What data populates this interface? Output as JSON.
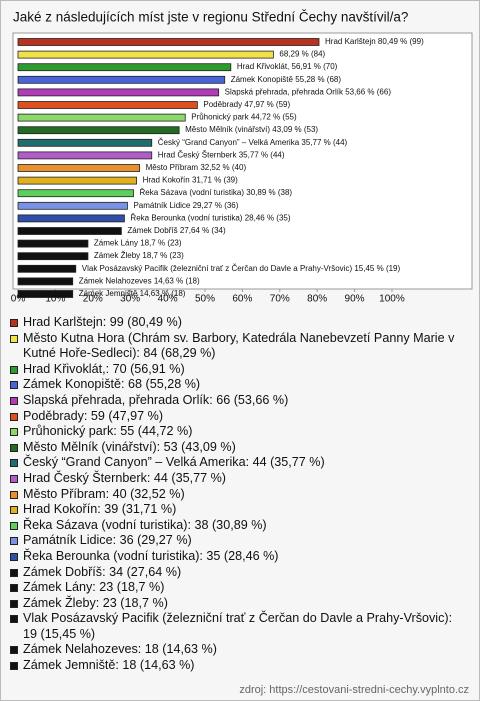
{
  "chart_data": {
    "type": "bar",
    "orientation": "horizontal",
    "title": "Jaké z následujících míst jste v regionu Střední Čechy navštívil/a?",
    "categories": [
      "Hrad Karlštejn",
      null,
      "Hrad Křivoklát,",
      "Zámek Konopiště",
      "Slapská přehrada, přehrada Orlík",
      "Poděbrady",
      "Průhonický park",
      "Město Mělník (vinářství)",
      "Český “Grand Canyon” – Velká Amerika",
      "Hrad Český Šternberk",
      "Město Příbram",
      "Hrad Kokořín",
      "Řeka Sázava (vodní turistika)",
      "Památník Lidice",
      "Řeka Berounka (vodní turistika)",
      "Zámek Dobříš",
      "Zámek Lány",
      "Zámek Žleby",
      "Vlak Posázavský Pacifik (železniční trať z Čerčan do Davle a Prahy-Vršovic)",
      "Zámek Nelahozeves",
      "Zámek Jemniště"
    ],
    "values": [
      80.49,
      68.29,
      56.91,
      55.28,
      53.66,
      47.97,
      44.72,
      43.09,
      35.77,
      35.77,
      32.52,
      31.71,
      30.89,
      29.27,
      28.46,
      27.64,
      18.7,
      18.7,
      15.45,
      14.63,
      14.63
    ],
    "value_labels": [
      "80,49 % (99)",
      "68,29 % (84)",
      "56,91 % (70)",
      "55,28 % (68)",
      "53,66 % (66)",
      "47,97 % (59)",
      "44,72 % (55)",
      "43,09 % (53)",
      "35,77 % (44)",
      "35,77 % (44)",
      "32,52 % (40)",
      "31,71 % (39)",
      "30,89 % (38)",
      "29,27 % (36)",
      "28,46 % (35)",
      "27,64 % (34)",
      "18,7 % (23)",
      "18,7 % (23)",
      "15,45 % (19)",
      "14,63 % (18)",
      "14,63 % (18)"
    ],
    "colors": [
      "#b8321e",
      "#f2e24a",
      "#2f9a2f",
      "#4a63d8",
      "#b23cb8",
      "#e0501e",
      "#8cd86a",
      "#236a23",
      "#1f6f6f",
      "#b25cc8",
      "#e8902e",
      "#e0b020",
      "#5ccf5c",
      "#7a92e6",
      "#2f4fa8",
      "#111111",
      "#111111",
      "#111111",
      "#111111",
      "#111111",
      "#111111"
    ],
    "legend_labels": [
      "Hrad Karlštejn: 99 (80,49 %)",
      "Město Kutna Hora (Chrám sv. Barbory, Katedrála Nanebevzetí Panny Marie v Kutné Hoře-Sedleci): 84 (68,29 %)",
      "Hrad Křivoklát,: 70 (56,91 %)",
      "Zámek Konopiště: 68 (55,28 %)",
      "Slapská přehrada, přehrada Orlík: 66 (53,66 %)",
      "Poděbrady: 59 (47,97 %)",
      "Průhonický park: 55 (44,72 %)",
      "Město Mělník (vinářství): 53 (43,09 %)",
      "Český “Grand Canyon” – Velká Amerika: 44 (35,77 %)",
      "Hrad Český Šternberk: 44 (35,77 %)",
      "Město Příbram: 40 (32,52 %)",
      "Hrad Kokořín: 39 (31,71 %)",
      "Řeka Sázava (vodní turistika): 38 (30,89 %)",
      "Památník Lidice: 36 (29,27 %)",
      "Řeka Berounka (vodní turistika): 35 (28,46 %)",
      "Zámek Dobříš: 34 (27,64 %)",
      "Zámek Lány: 23 (18,7 %)",
      "Zámek Žleby: 23 (18,7 %)",
      "Vlak Posázavský Pacifik (železniční trať z Čerčan do Davle a Prahy-Vršovic): 19 (15,45 %)",
      "Zámek Nelahozeves: 18 (14,63 %)",
      "Zámek Jemniště: 18 (14,63 %)"
    ],
    "xlim": [
      0,
      121
    ],
    "xticks": [
      {
        "value": 0,
        "label": "0%"
      },
      {
        "value": 10,
        "label": "10%"
      },
      {
        "value": 20,
        "label": "20%"
      },
      {
        "value": 30,
        "label": "30%"
      },
      {
        "value": 40,
        "label": "40%"
      },
      {
        "value": 50,
        "label": "50%"
      },
      {
        "value": 60,
        "label": "60%"
      },
      {
        "value": 70,
        "label": "70%"
      },
      {
        "value": 80,
        "label": "80%"
      },
      {
        "value": 90,
        "label": "90%"
      },
      {
        "value": 100,
        "label": "100%"
      }
    ],
    "source": "zdroj: https://cestovani-stredni-cechy.vyplnto.cz"
  }
}
